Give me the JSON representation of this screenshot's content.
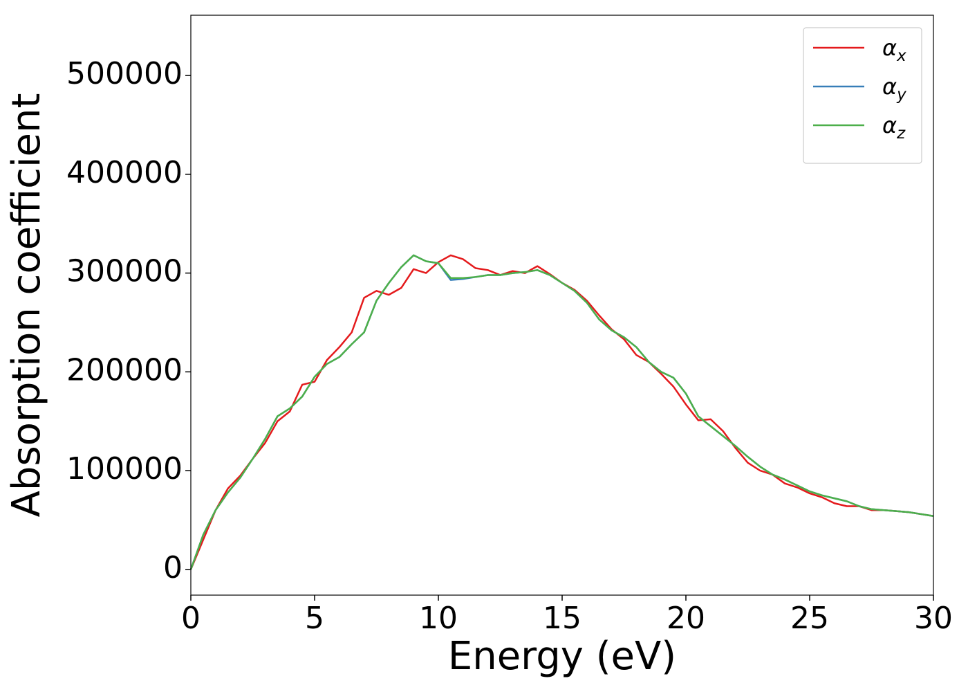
{
  "chart_data": {
    "type": "line",
    "xlabel": "Energy (eV)",
    "ylabel": "Absorption coefficient",
    "x": [
      0,
      0.5,
      1,
      1.5,
      2,
      2.5,
      3,
      3.5,
      4,
      4.5,
      5,
      5.5,
      6,
      6.5,
      7,
      7.5,
      8,
      8.5,
      9,
      9.5,
      10,
      10.5,
      11,
      11.5,
      12,
      12.5,
      13,
      13.5,
      14,
      14.5,
      15,
      15.5,
      16,
      16.5,
      17,
      17.5,
      18,
      18.5,
      19,
      19.5,
      20,
      20.5,
      21,
      21.5,
      22,
      22.5,
      23,
      23.5,
      24,
      24.5,
      25,
      25.5,
      26,
      26.5,
      27,
      27.5,
      28,
      28.5,
      29,
      29.5,
      30
    ],
    "series": [
      {
        "name": "αx",
        "color": "#e41a1c",
        "values": [
          0,
          30000,
          60000,
          82000,
          95000,
          112000,
          128000,
          150000,
          160000,
          187000,
          190000,
          212000,
          225000,
          240000,
          275000,
          282000,
          278000,
          285000,
          304000,
          300000,
          311000,
          318000,
          314000,
          305000,
          303000,
          298000,
          302000,
          300000,
          307000,
          299000,
          290000,
          283000,
          272000,
          257000,
          243000,
          233000,
          217000,
          210000,
          198000,
          185000,
          167000,
          151000,
          152000,
          140000,
          123000,
          108000,
          100000,
          96000,
          87000,
          83000,
          77000,
          73000,
          67000,
          64000,
          64000,
          60000,
          60000,
          59000,
          58000,
          56000,
          54000
        ]
      },
      {
        "name": "αy",
        "color": "#377eb8",
        "values": [
          0,
          35000,
          60000,
          78000,
          93000,
          112000,
          132000,
          155000,
          163000,
          175000,
          195000,
          208000,
          215000,
          228000,
          240000,
          272000,
          290000,
          306000,
          318000,
          312000,
          310000,
          293000,
          294000,
          296000,
          298000,
          298000,
          300000,
          301000,
          303000,
          298000,
          290000,
          282000,
          270000,
          253000,
          242000,
          235000,
          225000,
          210000,
          200000,
          194000,
          178000,
          155000,
          145000,
          135000,
          125000,
          114000,
          104000,
          96000,
          91000,
          85000,
          79000,
          75000,
          72000,
          69000,
          64000,
          61000,
          60000,
          59000,
          58000,
          56000,
          54000
        ]
      },
      {
        "name": "αz",
        "color": "#4daf4a",
        "values": [
          0,
          35000,
          60000,
          78000,
          93000,
          112000,
          132000,
          155000,
          163000,
          175000,
          195000,
          208000,
          215000,
          228000,
          240000,
          272000,
          290000,
          306000,
          318000,
          312000,
          310000,
          295000,
          295000,
          296000,
          298000,
          298000,
          300000,
          301000,
          303000,
          298000,
          290000,
          282000,
          270000,
          253000,
          242000,
          235000,
          225000,
          210000,
          200000,
          194000,
          178000,
          155000,
          145000,
          135000,
          125000,
          114000,
          104000,
          96000,
          91000,
          85000,
          79000,
          75000,
          72000,
          69000,
          64000,
          61000,
          60000,
          59000,
          58000,
          56000,
          54000
        ]
      }
    ],
    "xlim": [
      0,
      30
    ],
    "xticks": [
      0,
      5,
      10,
      15,
      20,
      25,
      30
    ],
    "ylim": [
      -26000,
      561000
    ],
    "yticks": [
      0,
      100000,
      200000,
      300000,
      400000,
      500000
    ],
    "grid": false,
    "legend": "upper right"
  }
}
